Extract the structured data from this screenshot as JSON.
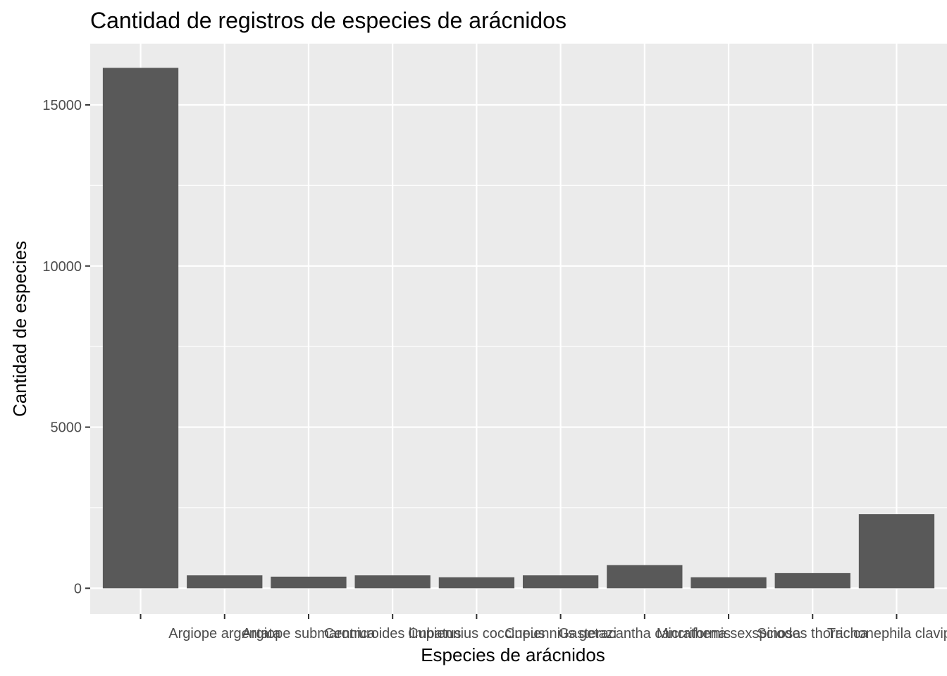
{
  "chart_data": {
    "type": "bar",
    "title": "Cantidad de registros de especies de arácnidos",
    "xlabel": "Especies de arácnidos",
    "ylabel": "Cantidad de especies",
    "categories": [
      "",
      "Argiope argentata",
      "Argiope submaronica",
      "Centruroides limbatus",
      "Cupiennius coccineus",
      "Cupiennius getazi",
      "Gasteracantha cancriformis",
      "Micrathena sexspinosa",
      "Sciodes thoracica",
      "Trichonephila clavipes"
    ],
    "values": [
      16150,
      400,
      360,
      400,
      340,
      400,
      720,
      340,
      470,
      2300
    ],
    "ylim": [
      -800,
      16900
    ],
    "yticks": [
      0,
      5000,
      10000,
      15000
    ],
    "ytick_labels": [
      "0",
      "5000",
      "10000",
      "15000"
    ],
    "grid": true,
    "legend": "none",
    "colors": {
      "bar": "#595959",
      "panel": "#ebebeb",
      "grid": "#ffffff",
      "tick_label": "#4d4d4d",
      "axis_title": "#000000"
    }
  }
}
